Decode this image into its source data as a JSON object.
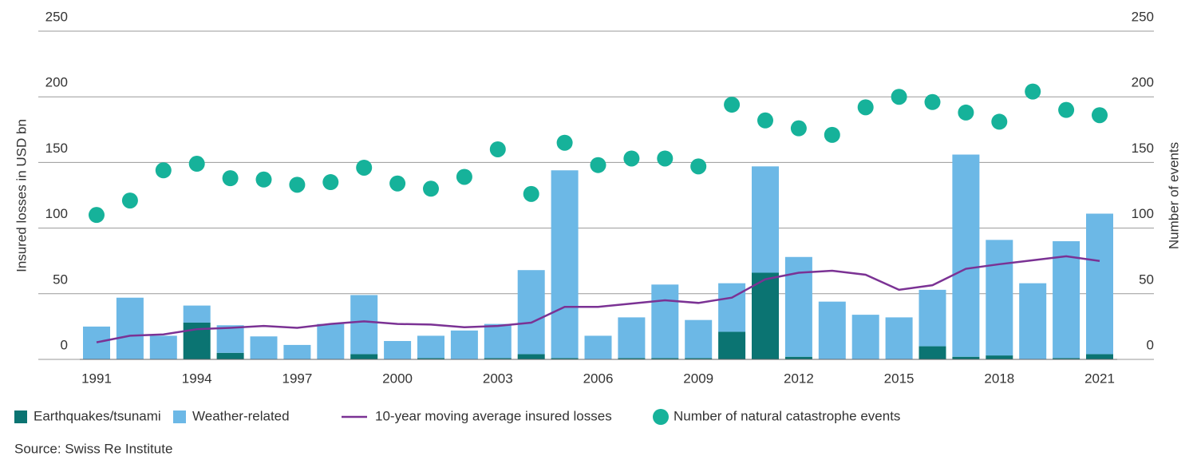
{
  "chart_data": {
    "type": "bar",
    "stacked": true,
    "y_label": "Insured losses in USD bn",
    "y2_label": "Number of events",
    "source": "Source: Swiss Re Institute",
    "categories": [
      "1991",
      null,
      null,
      "1994",
      null,
      null,
      "1997",
      null,
      null,
      "2000",
      null,
      null,
      "2003",
      null,
      null,
      "2006",
      null,
      null,
      "2009",
      null,
      null,
      "2012",
      null,
      null,
      "2015",
      null,
      null,
      "2018",
      null,
      null,
      "2021"
    ],
    "ylim": [
      0,
      250
    ],
    "yticks": [
      0,
      50,
      100,
      150,
      200,
      250
    ],
    "y2lim": [
      0,
      250
    ],
    "y2ticks": [
      0,
      50,
      100,
      150,
      200,
      250
    ],
    "grid": true,
    "series": [
      {
        "name": "Earthquakes/tsunami",
        "type": "bar",
        "color": "#0b7472",
        "values": [
          0,
          0,
          0,
          28,
          5,
          0,
          0,
          0,
          4,
          0,
          1,
          0,
          1,
          4,
          1,
          0,
          1,
          1,
          1,
          21,
          66,
          2,
          0,
          0,
          0,
          10,
          2,
          3,
          0,
          1,
          4
        ]
      },
      {
        "name": "Weather-related",
        "type": "bar",
        "color": "#6cb8e6",
        "values": [
          25,
          47,
          18,
          13,
          21,
          17.5,
          11,
          27,
          45,
          14,
          17,
          22,
          26,
          64,
          143,
          18,
          31,
          56,
          29,
          37,
          81,
          76,
          44,
          34,
          32,
          43,
          154,
          88,
          58,
          89,
          107
        ]
      },
      {
        "name": "10-year moving average insured losses",
        "type": "line",
        "color": "#7b3294",
        "values": [
          13,
          18,
          19,
          23,
          24,
          25.5,
          24,
          27,
          29,
          27,
          26.5,
          24.5,
          25.5,
          28,
          40,
          40,
          42.5,
          45,
          43,
          47,
          61,
          66,
          67.5,
          64.5,
          53,
          56.5,
          69,
          72.5,
          75.5,
          78.5,
          75
        ]
      },
      {
        "name": "Number of natural catastrophe events",
        "type": "scatter",
        "axis": "y2",
        "color": "#16b29a",
        "values": [
          110,
          121,
          144,
          149,
          138,
          137,
          133,
          135,
          146,
          134,
          130,
          139,
          160,
          126,
          165,
          148,
          153,
          153,
          147,
          194,
          182,
          176,
          171,
          192,
          200,
          196,
          188,
          181,
          204,
          190,
          186
        ]
      }
    ]
  }
}
